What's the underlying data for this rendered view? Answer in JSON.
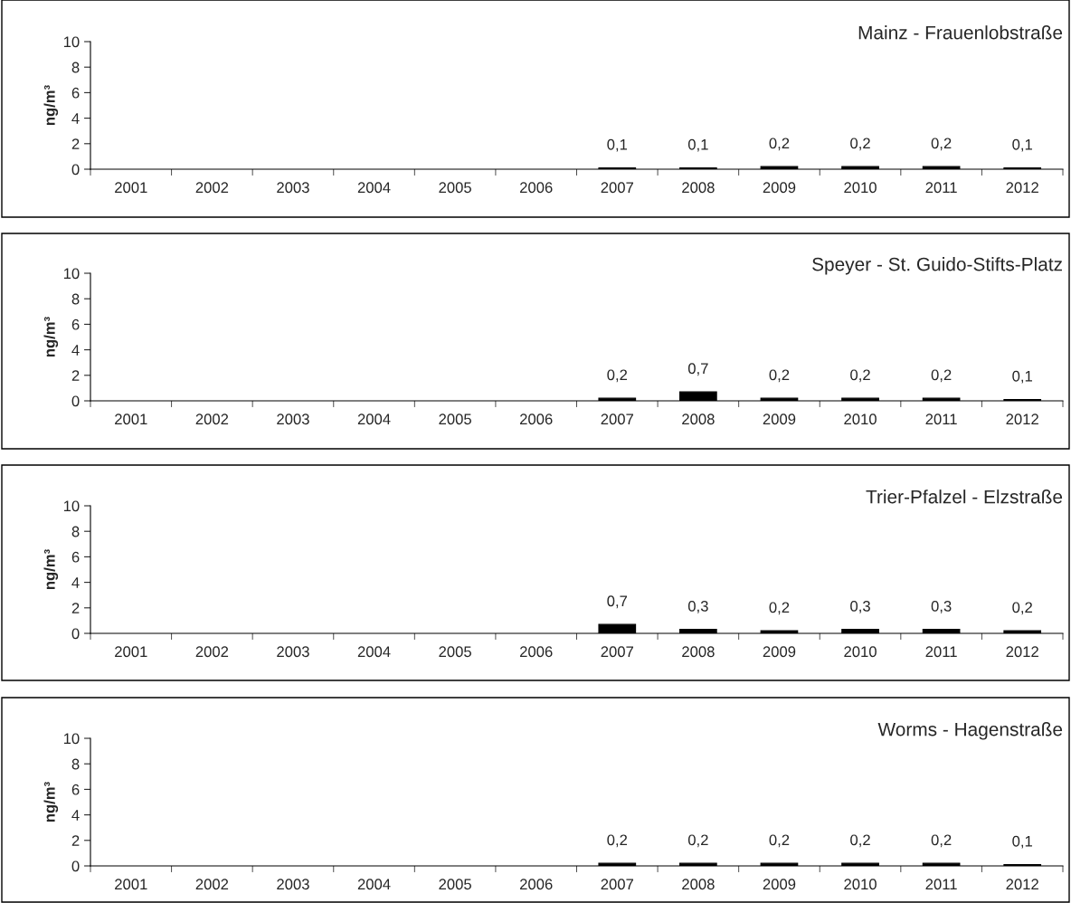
{
  "chart_data": [
    {
      "type": "bar",
      "title": "Mainz - Frauenlobstraße",
      "ylabel": "ng/m³",
      "categories": [
        "2001",
        "2002",
        "2003",
        "2004",
        "2005",
        "2006",
        "2007",
        "2008",
        "2009",
        "2010",
        "2011",
        "2012"
      ],
      "values": [
        null,
        null,
        null,
        null,
        null,
        null,
        0.1,
        0.1,
        0.2,
        0.2,
        0.2,
        0.1
      ],
      "value_labels": [
        null,
        null,
        null,
        null,
        null,
        null,
        "0,1",
        "0,1",
        "0,2",
        "0,2",
        "0,2",
        "0,1"
      ],
      "color": "#000000",
      "ylim": [
        0,
        10
      ],
      "yticks": [
        0,
        2,
        4,
        6,
        8,
        10
      ],
      "grid": false,
      "legend": false
    },
    {
      "type": "bar",
      "title": "Speyer - St. Guido-Stifts-Platz",
      "ylabel": "ng/m³",
      "categories": [
        "2001",
        "2002",
        "2003",
        "2004",
        "2005",
        "2006",
        "2007",
        "2008",
        "2009",
        "2010",
        "2011",
        "2012"
      ],
      "values": [
        null,
        null,
        null,
        null,
        null,
        null,
        0.2,
        0.7,
        0.2,
        0.2,
        0.2,
        0.1
      ],
      "value_labels": [
        null,
        null,
        null,
        null,
        null,
        null,
        "0,2",
        "0,7",
        "0,2",
        "0,2",
        "0,2",
        "0,1"
      ],
      "color": "#000000",
      "ylim": [
        0,
        10
      ],
      "yticks": [
        0,
        2,
        4,
        6,
        8,
        10
      ],
      "grid": false,
      "legend": false
    },
    {
      "type": "bar",
      "title": "Trier-Pfalzel - Elzstraße",
      "ylabel": "ng/m³",
      "categories": [
        "2001",
        "2002",
        "2003",
        "2004",
        "2005",
        "2006",
        "2007",
        "2008",
        "2009",
        "2010",
        "2011",
        "2012"
      ],
      "values": [
        null,
        null,
        null,
        null,
        null,
        null,
        0.7,
        0.3,
        0.2,
        0.3,
        0.3,
        0.2
      ],
      "value_labels": [
        null,
        null,
        null,
        null,
        null,
        null,
        "0,7",
        "0,3",
        "0,2",
        "0,3",
        "0,3",
        "0,2"
      ],
      "color": "#000000",
      "ylim": [
        0,
        10
      ],
      "yticks": [
        0,
        2,
        4,
        6,
        8,
        10
      ],
      "grid": false,
      "legend": false
    },
    {
      "type": "bar",
      "title": "Worms - Hagenstraße",
      "ylabel": "ng/m³",
      "categories": [
        "2001",
        "2002",
        "2003",
        "2004",
        "2005",
        "2006",
        "2007",
        "2008",
        "2009",
        "2010",
        "2011",
        "2012"
      ],
      "values": [
        null,
        null,
        null,
        null,
        null,
        null,
        0.2,
        0.2,
        0.2,
        0.2,
        0.2,
        0.1
      ],
      "value_labels": [
        null,
        null,
        null,
        null,
        null,
        null,
        "0,2",
        "0,2",
        "0,2",
        "0,2",
        "0,2",
        "0,1"
      ],
      "color": "#000000",
      "ylim": [
        0,
        10
      ],
      "yticks": [
        0,
        2,
        4,
        6,
        8,
        10
      ],
      "grid": false,
      "legend": false
    }
  ]
}
